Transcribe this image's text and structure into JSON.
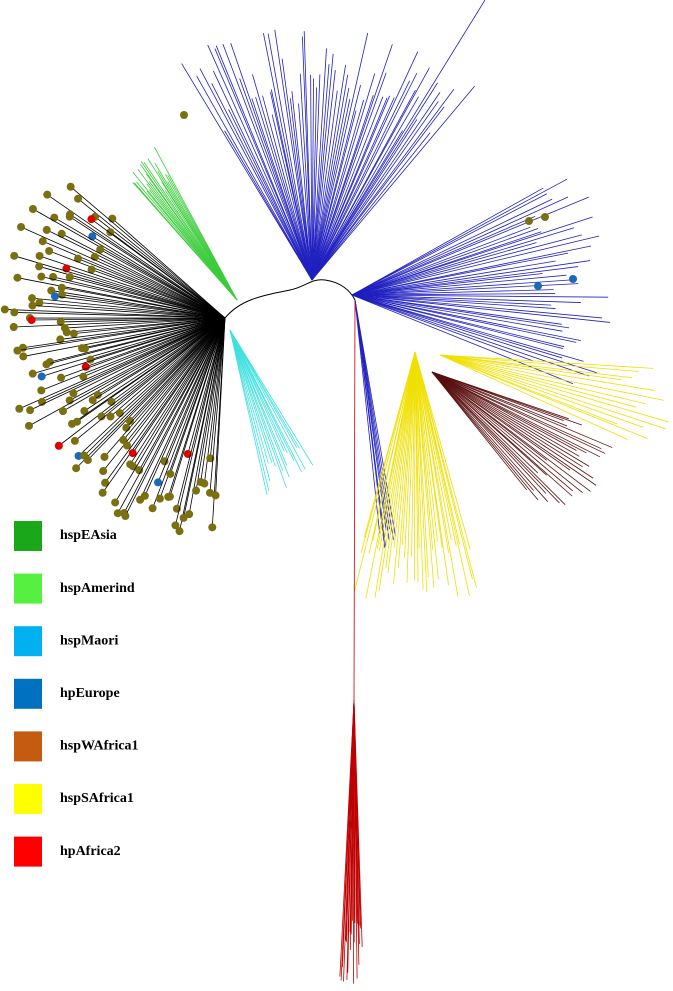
{
  "legend": [
    {
      "label": "hspEAsia",
      "color": "#1aa81a"
    },
    {
      "label": "hspAmerind",
      "color": "#55f040"
    },
    {
      "label": "hspMaori",
      "color": "#00b0f0"
    },
    {
      "label": "hpEurope",
      "color": "#0070c0"
    },
    {
      "label": "hspWAfrica1",
      "color": "#c55a11"
    },
    {
      "label": "hspSAfrica1",
      "color": "#ffff00"
    },
    {
      "label": "hpAfrica2",
      "color": "#ff0000"
    }
  ]
}
